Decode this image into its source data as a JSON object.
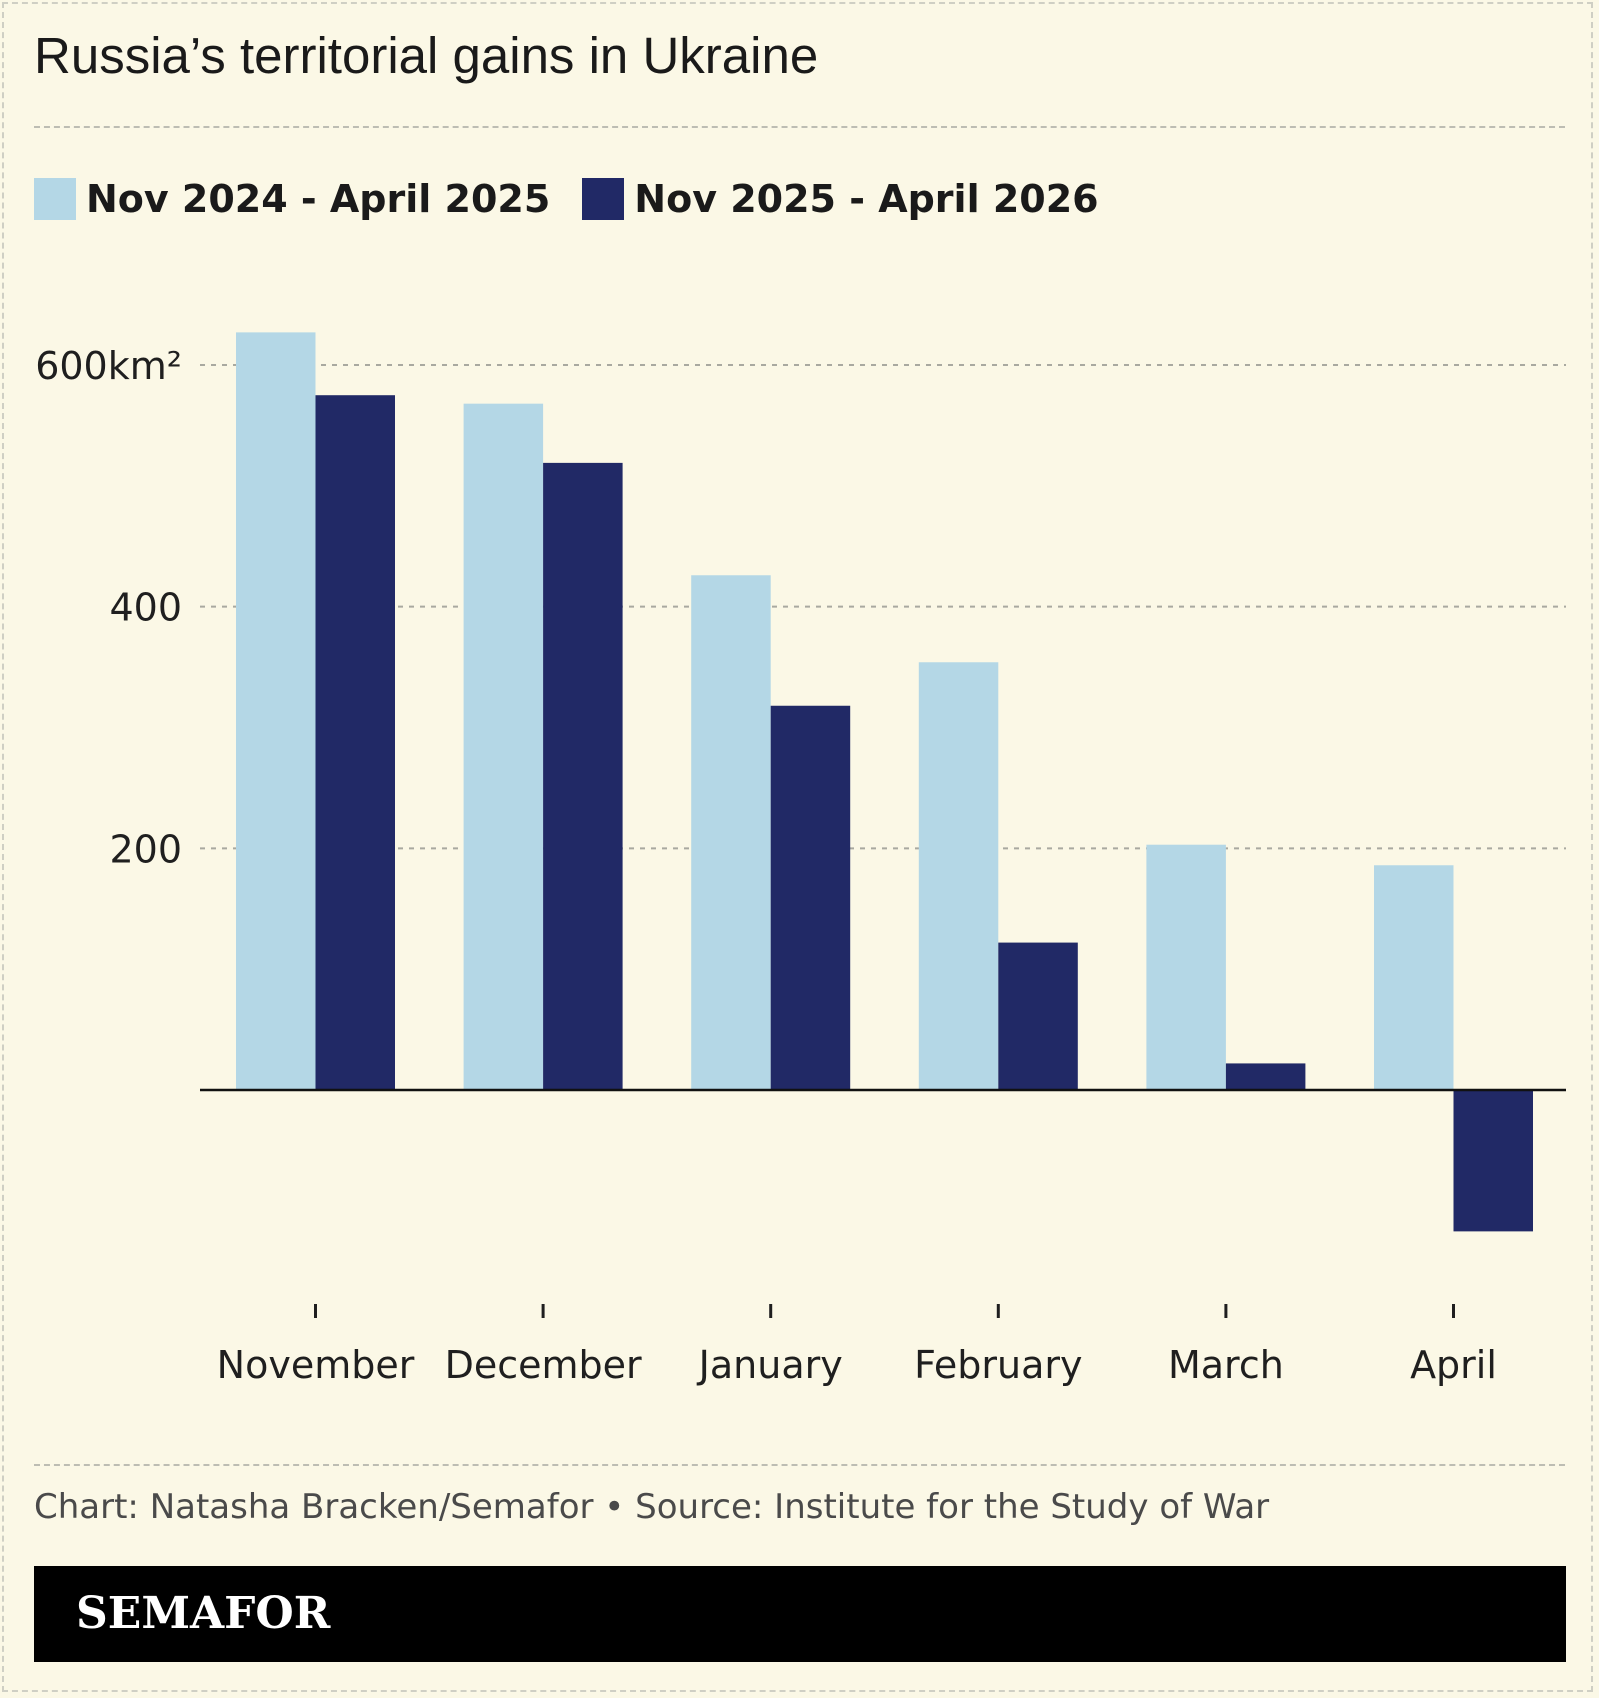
{
  "title": "Russia’s territorial gains in Ukraine",
  "legend": {
    "series_a": "Nov 2024 - April 2025",
    "series_b": "Nov 2025 - April 2026"
  },
  "colors": {
    "series_a": "#b4d7e6",
    "series_b": "#212966",
    "background": "#fbf8e6",
    "brand_bar": "#000000"
  },
  "credit": "Chart: Natasha Bracken/Semafor • Source: Institute for the Study of War",
  "brand": "SEMAFOR",
  "chart_data": {
    "type": "bar",
    "title": "Russia’s territorial gains in Ukraine",
    "xlabel": "",
    "ylabel": "",
    "categories": [
      "November",
      "December",
      "January",
      "February",
      "March",
      "April"
    ],
    "series": [
      {
        "name": "Nov 2024 - April 2025",
        "values": [
          627,
          568,
          426,
          354,
          203,
          186
        ]
      },
      {
        "name": "Nov 2025 - April 2026",
        "values": [
          575,
          519,
          318,
          122,
          22,
          -117
        ]
      }
    ],
    "y_ticks": [
      {
        "value": 600,
        "label": "600km²"
      },
      {
        "value": 400,
        "label": "400"
      },
      {
        "value": 200,
        "label": "200"
      }
    ],
    "ylim": [
      -175,
      640
    ],
    "grid": true,
    "legend_position": "top-left"
  }
}
